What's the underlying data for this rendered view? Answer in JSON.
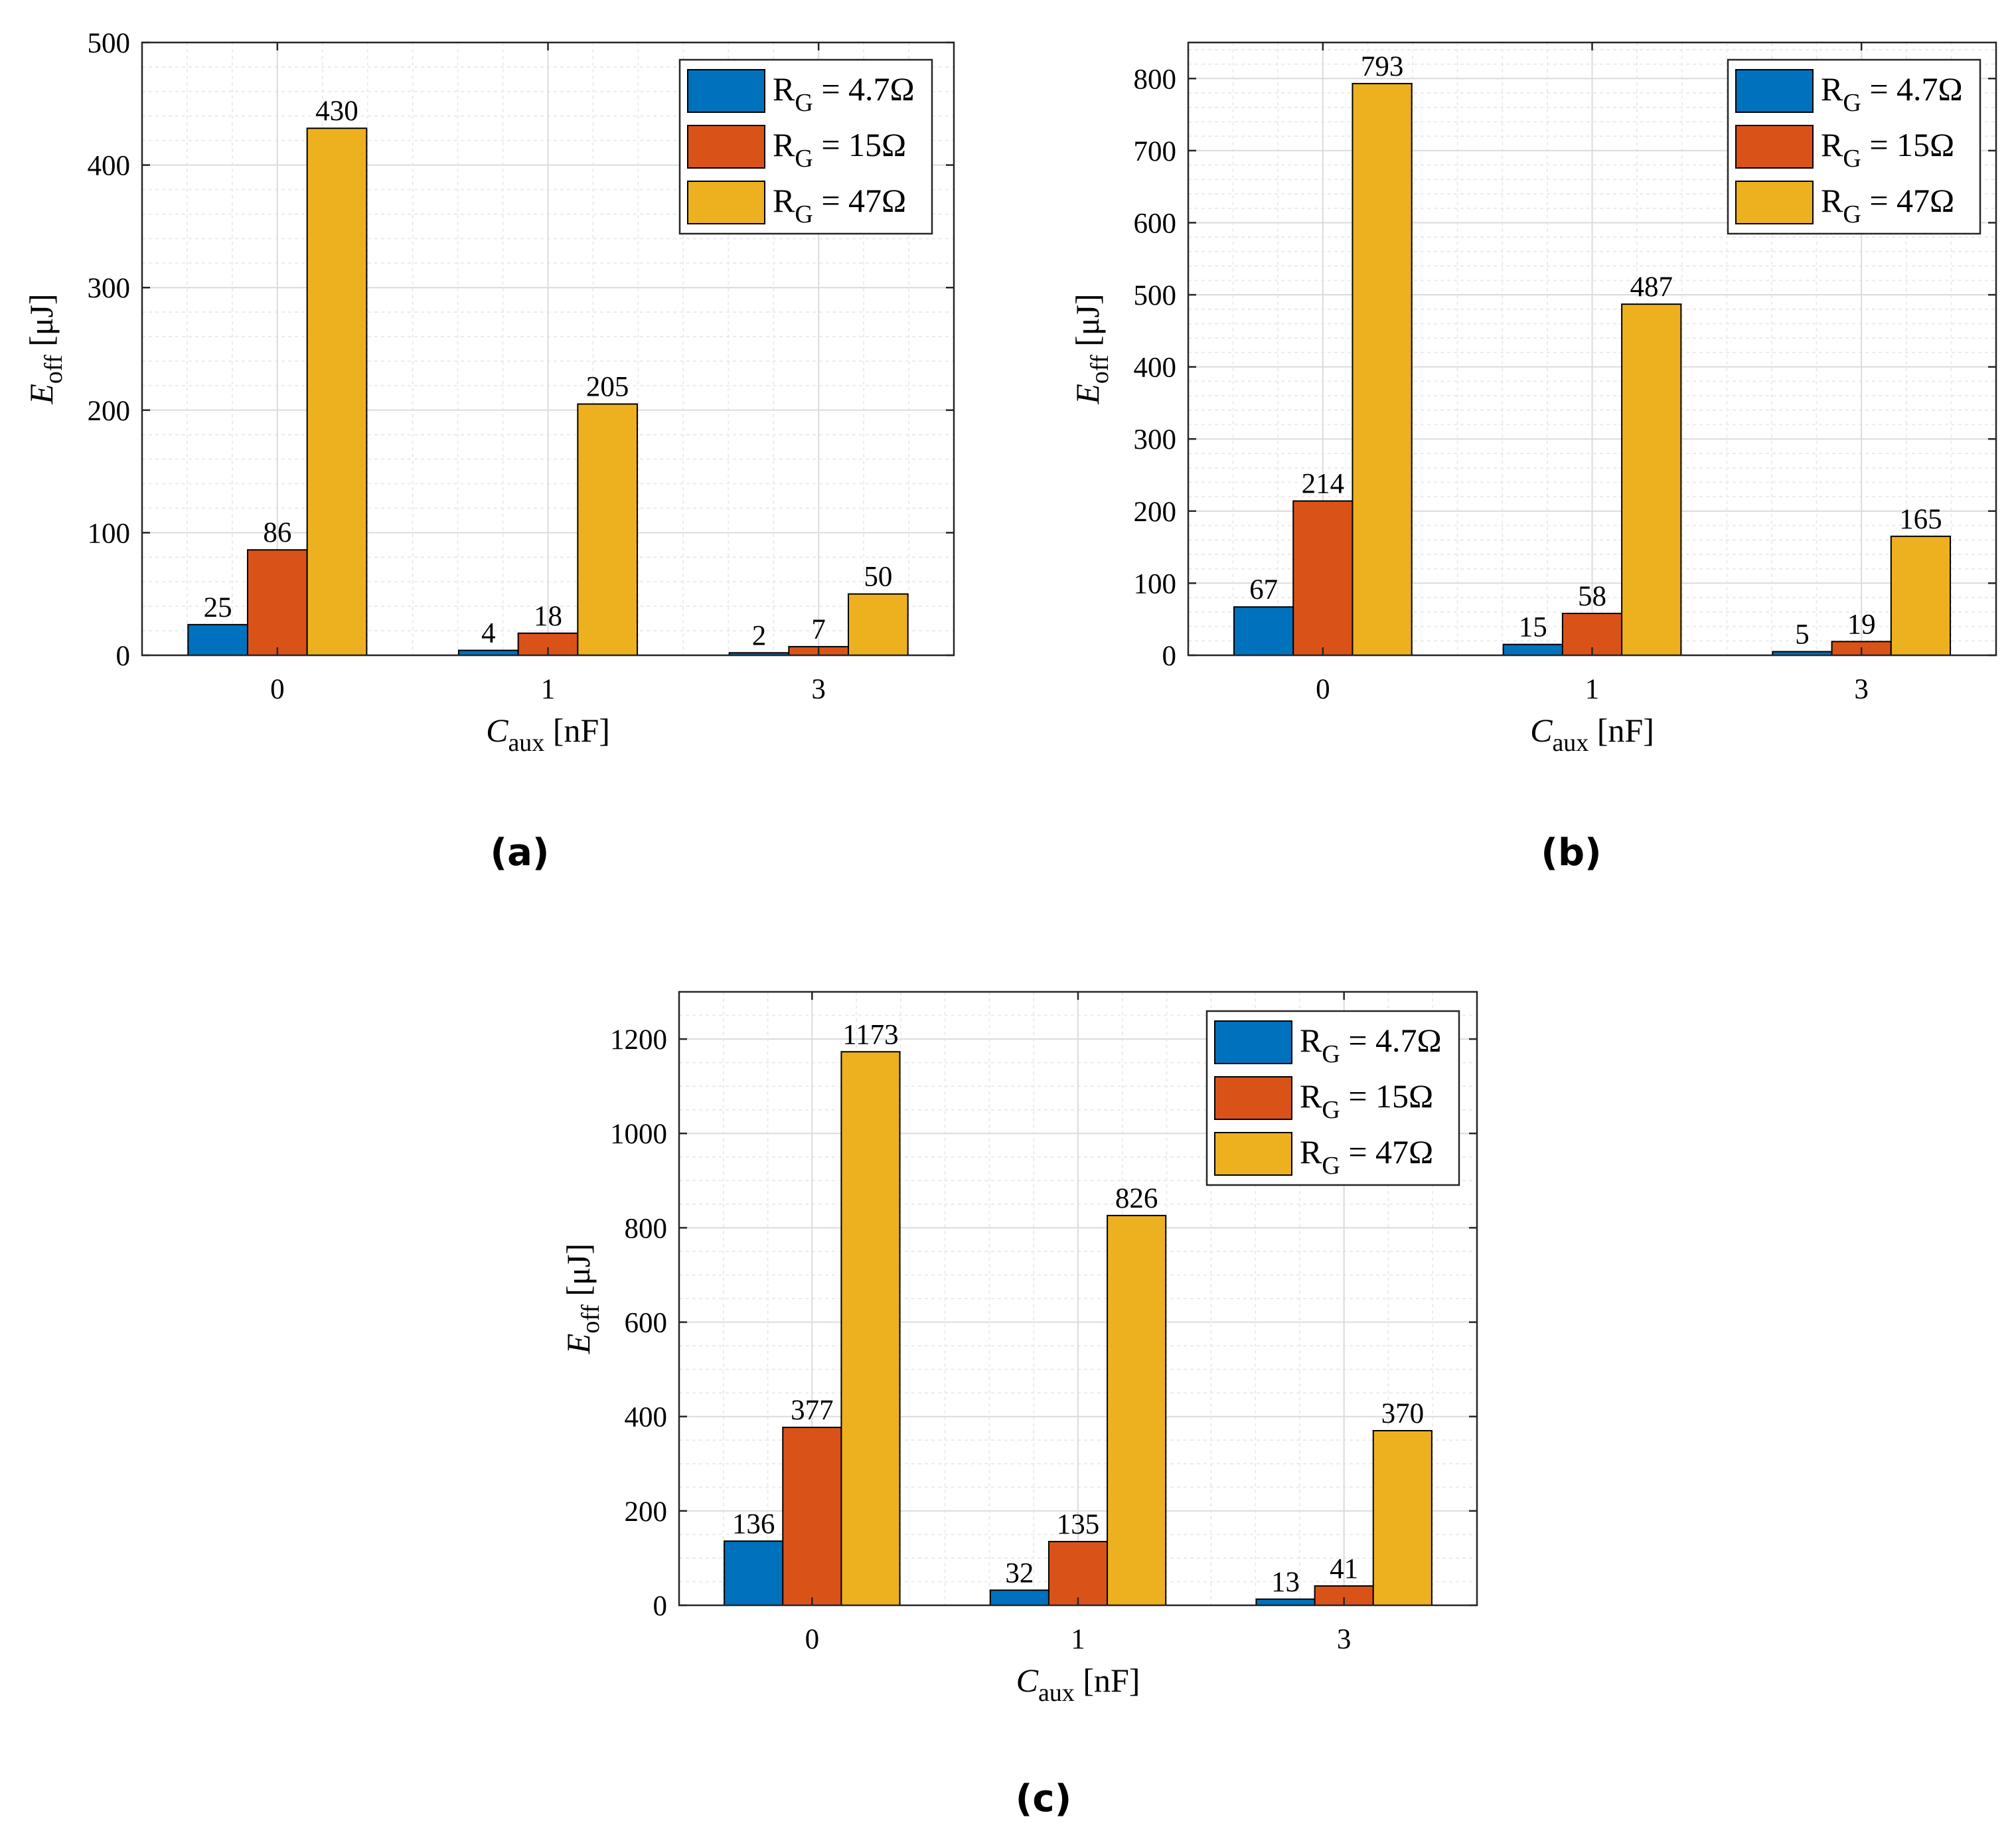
{
  "colors": {
    "series": [
      "#0072BD",
      "#D95319",
      "#EDB120"
    ],
    "axis": "#262626",
    "grid_major": "#dcdcdc",
    "grid_minor": "#ececec",
    "bar_edge": "#000000"
  },
  "legend": {
    "prefix": "R",
    "subscript": "G",
    "items": [
      "= 4.7Ω",
      "= 15Ω",
      "= 47Ω"
    ]
  },
  "chart_data": [
    {
      "type": "bar",
      "panel": "(a)",
      "categories": [
        "0",
        "1",
        "3"
      ],
      "series": [
        {
          "name": "R_G = 4.7Ω",
          "values": [
            25,
            4,
            2
          ]
        },
        {
          "name": "R_G = 15Ω",
          "values": [
            86,
            18,
            7
          ]
        },
        {
          "name": "R_G = 47Ω",
          "values": [
            430,
            205,
            50
          ]
        }
      ],
      "ylim": [
        0,
        500
      ],
      "yticks": [
        0,
        100,
        200,
        300,
        400,
        500
      ],
      "minor_step": 20,
      "xlabel": {
        "main": "C",
        "sub": "aux",
        "unit": " [nF]"
      },
      "ylabel": {
        "main": "E",
        "sub": "off",
        "unit": " [μJ]"
      },
      "legend_position": "top-right",
      "grid": true
    },
    {
      "type": "bar",
      "panel": "(b)",
      "categories": [
        "0",
        "1",
        "3"
      ],
      "series": [
        {
          "name": "R_G = 4.7Ω",
          "values": [
            67,
            15,
            5
          ]
        },
        {
          "name": "R_G = 15Ω",
          "values": [
            214,
            58,
            19
          ]
        },
        {
          "name": "R_G = 47Ω",
          "values": [
            793,
            487,
            165
          ]
        }
      ],
      "ylim": [
        0,
        850
      ],
      "yticks": [
        0,
        100,
        200,
        300,
        400,
        500,
        600,
        700,
        800
      ],
      "minor_step": 20,
      "xlabel": {
        "main": "C",
        "sub": "aux",
        "unit": " [nF]"
      },
      "ylabel": {
        "main": "E",
        "sub": "off",
        "unit": " [μJ]"
      },
      "legend_position": "top-right",
      "grid": true
    },
    {
      "type": "bar",
      "panel": "(c)",
      "categories": [
        "0",
        "1",
        "3"
      ],
      "series": [
        {
          "name": "R_G = 4.7Ω",
          "values": [
            136,
            32,
            13
          ]
        },
        {
          "name": "R_G = 15Ω",
          "values": [
            377,
            135,
            41
          ]
        },
        {
          "name": "R_G = 47Ω",
          "values": [
            1173,
            826,
            370
          ]
        }
      ],
      "ylim": [
        0,
        1300
      ],
      "yticks": [
        0,
        200,
        400,
        600,
        800,
        1000,
        1200
      ],
      "minor_step": 50,
      "xlabel": {
        "main": "C",
        "sub": "aux",
        "unit": " [nF]"
      },
      "ylabel": {
        "main": "E",
        "sub": "off",
        "unit": " [μJ]"
      },
      "legend_position": "top-right",
      "grid": true
    }
  ]
}
